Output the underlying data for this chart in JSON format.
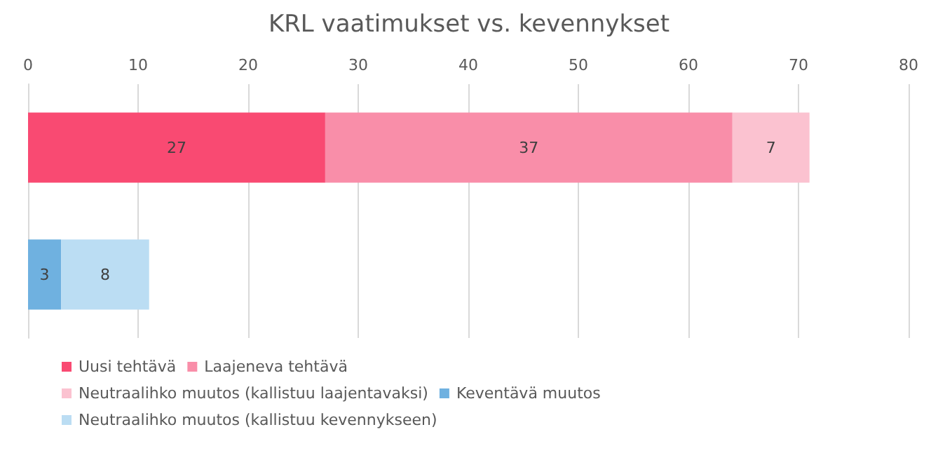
{
  "chart_data": {
    "type": "bar",
    "title": "KRL vaatimukset vs. kevennykset",
    "orientation": "horizontal",
    "stacked": true,
    "categories": [
      null,
      null
    ],
    "series": [
      {
        "name": "Uusi tehtävä",
        "color": "#f94a72",
        "values": [
          27,
          null
        ]
      },
      {
        "name": "Laajeneva tehtävä",
        "color": "#f98ea9",
        "values": [
          37,
          null
        ]
      },
      {
        "name": "Neutraalihko muutos (kallistuu laajentavaksi)",
        "color": "#fbc2d0",
        "values": [
          7,
          null
        ]
      },
      {
        "name": "Keventävä muutos",
        "color": "#6fb1e0",
        "values": [
          null,
          3
        ]
      },
      {
        "name": "Neutraalihko muutos (kallistuu kevennykseen)",
        "color": "#bbddf3",
        "values": [
          null,
          8
        ]
      }
    ],
    "xlim": [
      0,
      80
    ],
    "xticks": [
      0,
      10,
      20,
      30,
      40,
      50,
      60,
      70,
      80
    ],
    "grid": "x",
    "data_labels": true,
    "legend": "bottom left"
  }
}
